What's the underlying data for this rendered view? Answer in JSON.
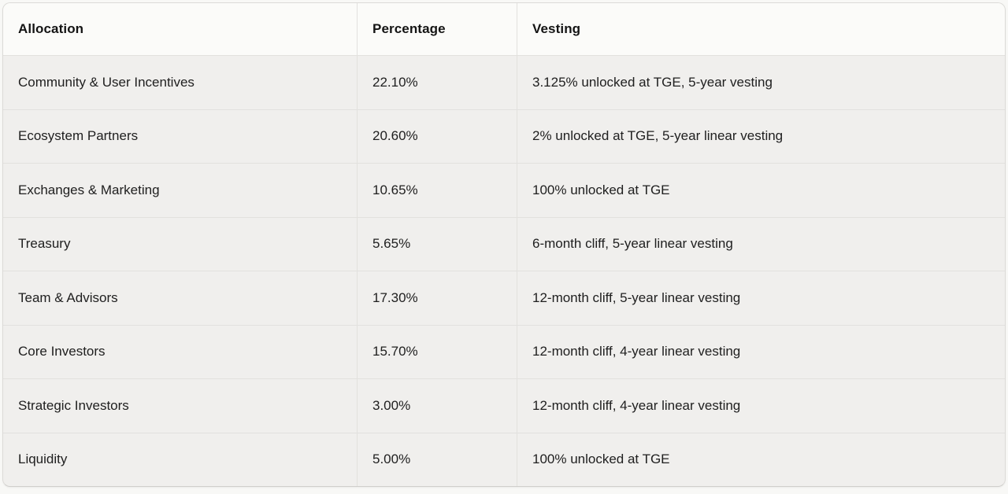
{
  "table": {
    "columns": [
      {
        "label": "Allocation"
      },
      {
        "label": "Percentage"
      },
      {
        "label": "Vesting"
      }
    ],
    "rows": [
      {
        "allocation": "Community & User Incentives",
        "percentage": "22.10%",
        "vesting": "3.125% unlocked at TGE, 5-year vesting"
      },
      {
        "allocation": "Ecosystem Partners",
        "percentage": "20.60%",
        "vesting": "2% unlocked at TGE, 5-year linear vesting"
      },
      {
        "allocation": "Exchanges & Marketing",
        "percentage": "10.65%",
        "vesting": "100% unlocked at TGE"
      },
      {
        "allocation": "Treasury",
        "percentage": "5.65%",
        "vesting": "6-month cliff, 5-year linear vesting"
      },
      {
        "allocation": "Team & Advisors",
        "percentage": "17.30%",
        "vesting": "12-month cliff, 5-year linear vesting"
      },
      {
        "allocation": "Core Investors",
        "percentage": "15.70%",
        "vesting": "12-month cliff, 4-year linear vesting"
      },
      {
        "allocation": "Strategic Investors",
        "percentage": "3.00%",
        "vesting": "12-month cliff, 4-year linear vesting"
      },
      {
        "allocation": "Liquidity",
        "percentage": "5.00%",
        "vesting": "100% unlocked at TGE"
      }
    ],
    "colors": {
      "header_bg": "#fbfbf9",
      "row_bg": "#f0efed",
      "border": "#e2e1de",
      "outer_border": "#dcdbd8",
      "text": "#202020",
      "page_bg": "#f8f8f6"
    }
  }
}
